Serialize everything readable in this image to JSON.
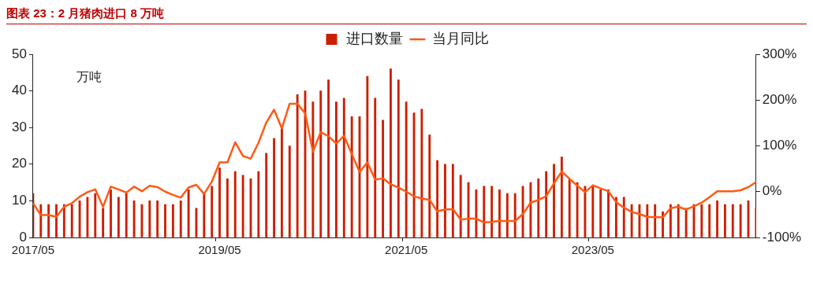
{
  "chart_data": {
    "type": "bar",
    "title": "图表 23：2 月猪肉进口 8 万吨",
    "ylabel": "万吨",
    "categories": [
      "2017/05",
      null,
      null,
      null,
      null,
      null,
      null,
      null,
      null,
      null,
      null,
      null,
      null,
      null,
      null,
      null,
      null,
      null,
      null,
      null,
      null,
      null,
      null,
      null,
      "2019/05",
      null,
      null,
      null,
      null,
      null,
      null,
      null,
      null,
      null,
      null,
      null,
      null,
      null,
      null,
      null,
      null,
      null,
      null,
      null,
      null,
      null,
      null,
      null,
      "2021/05",
      null,
      null,
      null,
      null,
      null,
      null,
      null,
      null,
      null,
      null,
      null,
      null,
      null,
      null,
      null,
      null,
      null,
      null,
      null,
      null,
      null,
      null,
      null,
      "2023/05",
      null,
      null,
      null,
      null,
      null,
      null,
      null,
      null,
      null,
      null,
      null,
      null,
      null,
      null,
      null,
      null,
      null,
      null,
      null,
      null,
      null
    ],
    "series": [
      {
        "name": "进口数量",
        "color": "#cc1f00",
        "values": [
          12,
          9,
          9,
          9,
          9,
          9,
          10,
          11,
          12,
          8,
          13,
          11,
          12,
          10,
          9,
          10,
          10,
          9,
          9,
          10,
          13,
          8,
          12,
          14,
          19,
          16,
          18,
          17,
          16,
          18,
          23,
          27,
          30,
          25,
          39,
          40,
          37,
          40,
          43,
          37,
          38,
          33,
          33,
          44,
          38,
          32,
          46,
          43,
          37,
          34,
          35,
          28,
          21,
          20,
          20,
          17,
          15,
          13,
          14,
          14,
          13,
          12,
          12,
          14,
          15,
          16,
          18,
          20,
          22,
          16,
          15,
          14,
          14,
          13,
          13,
          11,
          11,
          9,
          9,
          9,
          9,
          7,
          9,
          9,
          8,
          9,
          9,
          9,
          10,
          9,
          9,
          9,
          10,
          8
        ]
      },
      {
        "name": "当月同比",
        "type": "line",
        "axis": "y2",
        "color": "#ff5a14",
        "values": [
          -25,
          -51,
          -51,
          -55,
          -33,
          -25,
          -11,
          -1,
          5,
          -33,
          11,
          5,
          -2,
          11,
          1,
          13,
          10,
          0,
          -7,
          -13,
          9,
          15,
          -5,
          22,
          64,
          64,
          108,
          78,
          72,
          107,
          151,
          179,
          138,
          192,
          192,
          171,
          87,
          130,
          121,
          105,
          122,
          82,
          43,
          64,
          26,
          29,
          16,
          9,
          0,
          -10,
          -15,
          -18,
          -43,
          -39,
          -38,
          -61,
          -59,
          -59,
          -67,
          -66,
          -64,
          -64,
          -64,
          -49,
          -24,
          -18,
          -10,
          18,
          44,
          28,
          13,
          -1,
          14,
          7,
          1,
          -23,
          -35,
          -44,
          -49,
          -55,
          -56,
          -56,
          -36,
          -33,
          -39,
          -32,
          -24,
          -12,
          1,
          1,
          1,
          3,
          10,
          21
        ]
      }
    ],
    "ylim": [
      0,
      50
    ],
    "yticks": [
      0,
      10,
      20,
      30,
      40,
      50
    ],
    "y2lim": [
      -100,
      300
    ],
    "y2ticks": [
      {
        "value": -100,
        "label": "-100%"
      },
      {
        "value": 0,
        "label": "0%"
      },
      {
        "value": 100,
        "label": "100%"
      },
      {
        "value": 200,
        "label": "200%"
      },
      {
        "value": 300,
        "label": "300%"
      }
    ],
    "grid": false,
    "legend": "top",
    "marker": "none",
    "line_style": "solid"
  }
}
